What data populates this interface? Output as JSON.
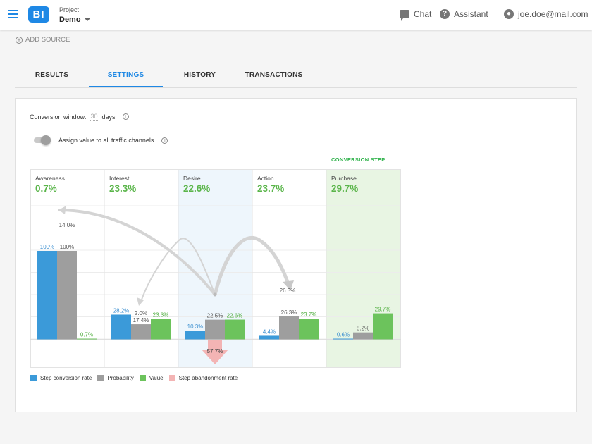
{
  "header": {
    "logo_text": "BI",
    "project_label": "Project",
    "project_name": "Demo",
    "chat_label": "Chat",
    "assistant_label": "Assistant",
    "user_email": "joe.doe@mail.com"
  },
  "add_source_label": "ADD SOURCE",
  "tabs": [
    {
      "label": "RESULTS",
      "active": false
    },
    {
      "label": "SETTINGS",
      "active": true
    },
    {
      "label": "HISTORY",
      "active": false
    },
    {
      "label": "TRANSACTIONS",
      "active": false
    }
  ],
  "settings": {
    "conversion_window_label": "Conversion window:",
    "conversion_window_value": "30",
    "conversion_window_unit": "days",
    "toggle_label": "Assign value to all traffic channels",
    "toggle_on": false,
    "conversion_step_label": "CONVERSION STEP"
  },
  "colors": {
    "step_conversion": "#3b9ad9",
    "probability": "#9e9e9e",
    "value": "#6cc35c",
    "abandonment": "#f3b4b4",
    "conversion_step_bg": "#e8f5e3",
    "highlight_bg": "#eef6fc",
    "rate_text": "#5ab54a"
  },
  "chart_data": {
    "type": "bar",
    "categories": [
      "Awareness",
      "Interest",
      "Desire",
      "Action",
      "Purchase"
    ],
    "stage_rates": [
      "0.7%",
      "23.3%",
      "22.6%",
      "23.7%",
      "29.7%"
    ],
    "ylim": [
      0,
      100
    ],
    "series": [
      {
        "name": "Step conversion rate",
        "values": [
          100,
          28.2,
          10.3,
          4.4,
          0.6
        ],
        "labels": [
          "100%",
          "28.2%",
          "10.3%",
          "4.4%",
          "0.6%"
        ]
      },
      {
        "name": "Probability",
        "values": [
          100,
          17.4,
          22.5,
          26.3,
          8.2
        ],
        "labels": [
          "100%",
          "17.4%",
          "22.5%",
          "26.3%",
          "8.2%"
        ]
      },
      {
        "name": "Value",
        "values": [
          0.7,
          23.3,
          22.6,
          23.7,
          29.7
        ],
        "labels": [
          "0.7%",
          "23.3%",
          "22.6%",
          "23.7%",
          "29.7%"
        ]
      }
    ],
    "extra_labels": {
      "interest_secondary": "2.0%"
    },
    "abandonment": {
      "stage": "Desire",
      "value": 57.7,
      "label": "57.7%"
    },
    "flows": [
      {
        "from": "Desire",
        "to": "Awareness",
        "label": "14.0%"
      },
      {
        "from": "Desire",
        "to": "Interest",
        "label": "2.0%"
      },
      {
        "from": "Desire",
        "to": "Action",
        "label": "26.3%"
      }
    ],
    "conversion_step": "Purchase",
    "highlighted_stage": "Desire",
    "legend": [
      "Step conversion rate",
      "Probability",
      "Value",
      "Step abandonment rate"
    ]
  }
}
